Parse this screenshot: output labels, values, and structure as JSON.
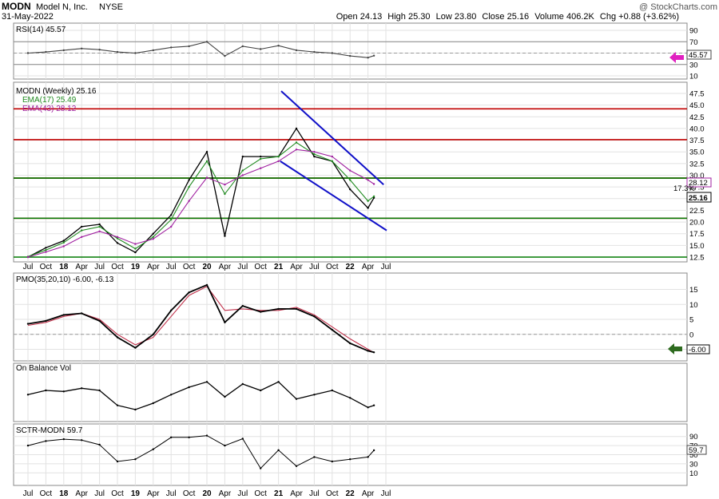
{
  "header": {
    "symbol": "MODN",
    "company": "Model N, Inc.",
    "exchange": "NYSE",
    "date": "31-May-2022",
    "watermark": "@ StockCharts.com",
    "quote": {
      "open_label": "Open",
      "open": "24.13",
      "high_label": "High",
      "high": "25.30",
      "low_label": "Low",
      "low": "23.80",
      "close_label": "Close",
      "close": "25.16",
      "volume_label": "Volume",
      "volume": "406.2K",
      "chg_label": "Chg",
      "chg": "+0.88 (+3.62%)"
    }
  },
  "panels": {
    "rsi": {
      "label": "RSI(14) 45.57",
      "tag": "45.57"
    },
    "price": {
      "label": "MODN (Weekly) 25.16",
      "ema17": "EMA(17) 25.49",
      "ema43": "EMA(43) 28.12",
      "close_tag": "25.16",
      "ema_tag": "28.12",
      "pct_note": "17.3%"
    },
    "pmo": {
      "label": "PMO(35,20,10) -6.00, -6.13",
      "tag": "-6.00"
    },
    "obv": {
      "label": "On Balance Vol"
    },
    "sctr": {
      "label": "SCTR-MODN 59.7",
      "tag": "59.7"
    }
  },
  "colors": {
    "price_bars": "#000000",
    "ema17": "#1f8a1f",
    "ema43": "#a020a0",
    "resistance_red": "#c00000",
    "support_green": "#007a00",
    "trend_channel": "#1010c8",
    "rsi_fill": "#c8a896",
    "pmo_signal": "#c0304a",
    "pink_arrow": "#e020c0",
    "green_arrow": "#2e6b1f"
  },
  "chart_data": [
    {
      "type": "line",
      "title": "RSI(14)",
      "ylim": [
        10,
        90
      ],
      "yticks": [
        "90",
        "70",
        "50",
        "30",
        "10"
      ],
      "last": 45.57,
      "x": [
        "2017-07",
        "2017-10",
        "2018-01",
        "2018-04",
        "2018-07",
        "2018-10",
        "2019-01",
        "2019-04",
        "2019-07",
        "2019-10",
        "2020-01",
        "2020-04",
        "2020-07",
        "2020-10",
        "2021-01",
        "2021-04",
        "2021-07",
        "2021-10",
        "2022-01",
        "2022-04",
        "2022-05"
      ],
      "values": [
        50,
        52,
        55,
        58,
        56,
        52,
        50,
        55,
        60,
        62,
        70,
        45,
        62,
        57,
        63,
        55,
        52,
        50,
        45,
        42,
        45.57
      ]
    },
    {
      "type": "line",
      "title": "MODN (Weekly) price",
      "ylim": [
        12.5,
        47.5
      ],
      "yticks": [
        "47.5",
        "45.0",
        "42.5",
        "40.0",
        "37.5",
        "35.0",
        "32.5",
        "30.0",
        "27.5",
        "25.0",
        "22.5",
        "20.0",
        "17.5",
        "15.0",
        "12.5"
      ],
      "x": [
        "2017-07",
        "2017-10",
        "2018-01",
        "2018-04",
        "2018-07",
        "2018-10",
        "2019-01",
        "2019-04",
        "2019-07",
        "2019-10",
        "2020-01",
        "2020-04",
        "2020-07",
        "2020-10",
        "2021-01",
        "2021-04",
        "2021-07",
        "2021-10",
        "2022-01",
        "2022-04",
        "2022-05"
      ],
      "series": [
        {
          "name": "MODN",
          "values": [
            12.5,
            14.5,
            16,
            19,
            19.5,
            15.5,
            13.5,
            17.5,
            21.5,
            29,
            35,
            17,
            34,
            34,
            34,
            40,
            34,
            33,
            27,
            23,
            25.16
          ]
        },
        {
          "name": "EMA(17)",
          "values": [
            12.6,
            14.0,
            15.6,
            18.2,
            19.0,
            16.5,
            14.3,
            16.8,
            20.5,
            27.5,
            33.0,
            26,
            31,
            33.5,
            34,
            37,
            34.5,
            33,
            29,
            24.5,
            25.49
          ]
        },
        {
          "name": "EMA(43)",
          "values": [
            12.5,
            13.6,
            14.8,
            16.8,
            18.0,
            16.8,
            15.3,
            16.4,
            19.0,
            24.5,
            29.5,
            28,
            30,
            31.5,
            33,
            35.5,
            35,
            34,
            31,
            29,
            28.12
          ]
        }
      ],
      "horizontal_lines": [
        {
          "color": "red",
          "value": 44.2
        },
        {
          "color": "red",
          "value": 37.6
        },
        {
          "color": "red",
          "value": 29.4
        },
        {
          "color": "red",
          "value": 20.8
        },
        {
          "color": "green",
          "value": 29.4
        },
        {
          "color": "green",
          "value": 20.8
        },
        {
          "color": "green",
          "value": 12.5
        }
      ],
      "trend_channel": [
        {
          "from": [
            "2021-01-15",
            48.0
          ],
          "to": [
            "2022-06-20",
            28.0
          ]
        },
        {
          "from": [
            "2021-01-10",
            33.0
          ],
          "to": [
            "2022-07-05",
            18.2
          ]
        }
      ]
    },
    {
      "type": "line",
      "title": "PMO(35,20,10)",
      "ylim": [
        -7,
        17
      ],
      "yticks": [
        "15",
        "10",
        "5",
        "0",
        "-5"
      ],
      "x": [
        "2017-07",
        "2017-10",
        "2018-01",
        "2018-04",
        "2018-07",
        "2018-10",
        "2019-01",
        "2019-04",
        "2019-07",
        "2019-10",
        "2020-01",
        "2020-04",
        "2020-07",
        "2020-10",
        "2021-01",
        "2021-04",
        "2021-07",
        "2021-10",
        "2022-01",
        "2022-04",
        "2022-05"
      ],
      "series": [
        {
          "name": "PMO",
          "values": [
            3.5,
            4.5,
            6.5,
            7,
            4.5,
            -1,
            -4.5,
            0,
            8,
            14,
            16.5,
            4,
            9.5,
            7.5,
            8.5,
            8.5,
            6,
            1.5,
            -3,
            -5.5,
            -6.0
          ]
        },
        {
          "name": "Signal",
          "values": [
            3,
            4,
            6,
            7,
            5,
            0,
            -3.5,
            -1,
            6,
            13,
            16,
            8,
            8.5,
            8,
            8,
            9,
            6.5,
            2.5,
            -1.5,
            -5,
            -6.13
          ]
        }
      ]
    },
    {
      "type": "line",
      "title": "On Balance Vol",
      "x": [
        "2017-07",
        "2017-10",
        "2018-01",
        "2018-04",
        "2018-07",
        "2018-10",
        "2019-01",
        "2019-04",
        "2019-07",
        "2019-10",
        "2020-01",
        "2020-04",
        "2020-07",
        "2020-10",
        "2021-01",
        "2021-04",
        "2021-07",
        "2021-10",
        "2022-01",
        "2022-04",
        "2022-05"
      ],
      "values": [
        48,
        52,
        51,
        54,
        52,
        38,
        34,
        40,
        48,
        55,
        60,
        46,
        58,
        52,
        60,
        44,
        48,
        52,
        45,
        36,
        38
      ]
    },
    {
      "type": "line",
      "title": "SCTR-MODN",
      "ylim": [
        0,
        100
      ],
      "yticks": [
        "90",
        "70",
        "50",
        "30",
        "10"
      ],
      "last": 59.7,
      "x": [
        "2017-07",
        "2017-10",
        "2018-01",
        "2018-04",
        "2018-07",
        "2018-10",
        "2019-01",
        "2019-04",
        "2019-07",
        "2019-10",
        "2020-01",
        "2020-04",
        "2020-07",
        "2020-10",
        "2021-01",
        "2021-04",
        "2021-07",
        "2021-10",
        "2022-01",
        "2022-04",
        "2022-05"
      ],
      "values": [
        70,
        80,
        84,
        82,
        72,
        35,
        40,
        62,
        88,
        88,
        92,
        70,
        85,
        20,
        60,
        25,
        45,
        35,
        40,
        45,
        59.7
      ]
    }
  ],
  "x_axis": {
    "labels": [
      "Jul",
      "Oct",
      "18",
      "Apr",
      "Jul",
      "Oct",
      "19",
      "Apr",
      "Jul",
      "Oct",
      "20",
      "Apr",
      "Jul",
      "Oct",
      "21",
      "Apr",
      "Jul",
      "Oct",
      "22",
      "Apr",
      "Jul"
    ],
    "bold_labels": [
      "18",
      "19",
      "20",
      "21",
      "22"
    ]
  }
}
